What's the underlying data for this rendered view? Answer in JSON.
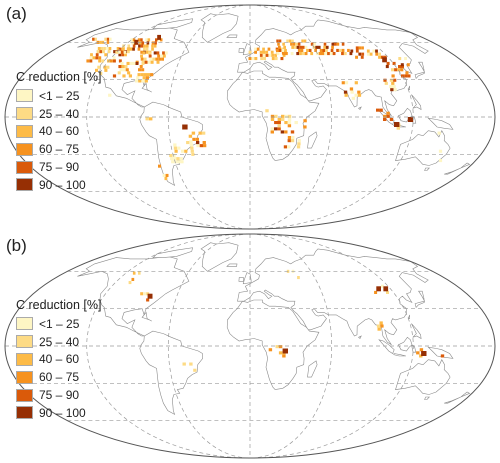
{
  "panels": [
    {
      "label": "(a)",
      "legend": {
        "title": "C reduction [%]",
        "items": [
          {
            "label": "<1 – 25",
            "color": "#FEF6C4"
          },
          {
            "label": "25 – 40",
            "color": "#FDDB85"
          },
          {
            "label": "40 – 60",
            "color": "#FDBB47"
          },
          {
            "label": "60 – 75",
            "color": "#F6921F"
          },
          {
            "label": "75 – 90",
            "color": "#DA5A0A"
          },
          {
            "label": "90 – 100",
            "color": "#962F04"
          }
        ]
      }
    },
    {
      "label": "(b)",
      "legend": {
        "title": "C reduction [%]",
        "items": [
          {
            "label": "<1 – 25",
            "color": "#FEF6C4"
          },
          {
            "label": "25 – 40",
            "color": "#FDDB85"
          },
          {
            "label": "40 – 60",
            "color": "#FDBB47"
          },
          {
            "label": "60 – 75",
            "color": "#F6921F"
          },
          {
            "label": "75 – 90",
            "color": "#DA5A0A"
          },
          {
            "label": "90 – 100",
            "color": "#962F04"
          }
        ]
      }
    }
  ],
  "style": {
    "coastline_color": "#8a8a8a",
    "graticule_color": "#9a9a9a",
    "frame_color": "#555555"
  }
}
